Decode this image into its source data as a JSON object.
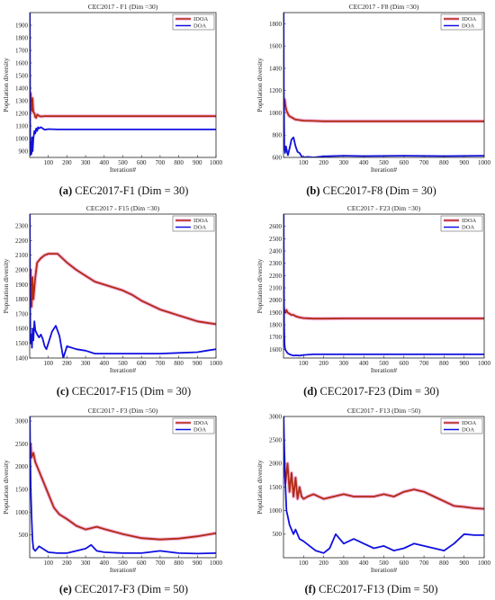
{
  "chart_data": [
    {
      "type": "line",
      "title": "CEC2017 - F1 (Dim =30)",
      "caption_letter": "(a)",
      "caption_text": " CEC2017-F1 (Dim = 30)",
      "xlabel": "Iteration#",
      "ylabel": "Population diversity",
      "xlim": [
        0,
        1000
      ],
      "ylim": [
        850,
        2000
      ],
      "xticks": [
        100,
        200,
        300,
        400,
        500,
        600,
        700,
        800,
        900,
        1000
      ],
      "yticks": [
        900,
        1000,
        1100,
        1200,
        1300,
        1400,
        1500,
        1600,
        1700,
        1800,
        1900
      ],
      "grid": false,
      "legend_position": "top-right",
      "series": [
        {
          "name": "IDOA",
          "color": "#b22a12",
          "halo": "#f2b6df",
          "x": [
            1,
            3,
            5,
            8,
            12,
            15,
            18,
            20,
            25,
            30,
            35,
            40,
            50,
            60,
            80,
            100,
            200,
            400,
            600,
            800,
            1000
          ],
          "y": [
            1250,
            1320,
            1360,
            1280,
            1220,
            1320,
            1240,
            1210,
            1200,
            1170,
            1165,
            1190,
            1180,
            1175,
            1178,
            1178,
            1178,
            1178,
            1178,
            1178,
            1178
          ]
        },
        {
          "name": "DOA",
          "color": "#1010e0",
          "halo": "",
          "x": [
            1,
            2,
            3,
            5,
            8,
            10,
            13,
            16,
            20,
            25,
            30,
            35,
            40,
            45,
            50,
            60,
            80,
            100,
            150,
            200,
            400,
            600,
            800,
            1000
          ],
          "y": [
            2000,
            1500,
            1000,
            870,
            950,
            880,
            1010,
            900,
            1000,
            1060,
            1040,
            1080,
            1060,
            1090,
            1080,
            1090,
            1070,
            1075,
            1072,
            1072,
            1072,
            1072,
            1072,
            1072
          ]
        }
      ]
    },
    {
      "type": "line",
      "title": "CEC2017 - F8 (Dim =30)",
      "caption_letter": "(b)",
      "caption_text": " CEC2017-F8 (Dim = 30)",
      "xlabel": "Iteration#",
      "ylabel": "Population diversity",
      "xlim": [
        0,
        1000
      ],
      "ylim": [
        600,
        1900
      ],
      "xticks": [
        100,
        200,
        300,
        400,
        500,
        600,
        700,
        800,
        900,
        1000
      ],
      "yticks": [
        600,
        800,
        1000,
        1200,
        1400,
        1600,
        1800
      ],
      "grid": false,
      "legend_position": "top-right",
      "series": [
        {
          "name": "IDOA",
          "color": "#b22a12",
          "halo": "#f2b6df",
          "x": [
            1,
            3,
            6,
            10,
            15,
            20,
            25,
            30,
            40,
            50,
            60,
            80,
            100,
            150,
            200,
            300,
            400,
            600,
            800,
            1000
          ],
          "y": [
            1050,
            1100,
            1120,
            1060,
            1020,
            1000,
            980,
            970,
            960,
            950,
            940,
            935,
            930,
            928,
            925,
            925,
            925,
            925,
            925,
            925
          ]
        },
        {
          "name": "DOA",
          "color": "#1010e0",
          "halo": "",
          "x": [
            1,
            2,
            4,
            8,
            12,
            18,
            22,
            30,
            40,
            50,
            60,
            70,
            80,
            90,
            100,
            120,
            150,
            200,
            300,
            400,
            600,
            800,
            1000
          ],
          "y": [
            1900,
            1200,
            700,
            640,
            700,
            650,
            620,
            680,
            760,
            780,
            700,
            650,
            640,
            610,
            600,
            605,
            600,
            610,
            615,
            612,
            615,
            612,
            615
          ]
        }
      ]
    },
    {
      "type": "line",
      "title": "CEC2017 - F15 (Dim =30)",
      "caption_letter": "(c)",
      "caption_text": " CEC2017-F15 (Dim = 30)",
      "xlabel": "Iteration#",
      "ylabel": "Population diversity",
      "xlim": [
        0,
        1000
      ],
      "ylim": [
        1400,
        2380
      ],
      "xticks": [
        100,
        200,
        300,
        400,
        500,
        600,
        700,
        800,
        900,
        1000
      ],
      "yticks": [
        1400,
        1500,
        1600,
        1700,
        1800,
        1900,
        2000,
        2100,
        2200,
        2300
      ],
      "grid": false,
      "legend_position": "top-right",
      "series": [
        {
          "name": "IDOA",
          "color": "#b22a12",
          "halo": "#f2b6df",
          "x": [
            1,
            5,
            10,
            15,
            20,
            30,
            40,
            60,
            80,
            100,
            150,
            200,
            250,
            300,
            350,
            400,
            450,
            500,
            550,
            600,
            650,
            700,
            750,
            800,
            850,
            900,
            950,
            1000
          ],
          "y": [
            1800,
            2000,
            1750,
            1950,
            1800,
            1950,
            2050,
            2080,
            2100,
            2110,
            2110,
            2050,
            2000,
            1960,
            1920,
            1900,
            1880,
            1860,
            1830,
            1790,
            1760,
            1730,
            1710,
            1690,
            1670,
            1650,
            1640,
            1630
          ]
        },
        {
          "name": "DOA",
          "color": "#1010e0",
          "halo": "",
          "x": [
            1,
            2,
            4,
            8,
            12,
            16,
            20,
            25,
            30,
            40,
            50,
            60,
            70,
            80,
            90,
            100,
            120,
            140,
            160,
            180,
            200,
            250,
            300,
            350,
            400,
            500,
            600,
            700,
            800,
            900,
            950,
            1000
          ],
          "y": [
            2380,
            1900,
            1500,
            1560,
            1470,
            1600,
            1520,
            1650,
            1590,
            1560,
            1540,
            1560,
            1530,
            1480,
            1460,
            1500,
            1580,
            1620,
            1550,
            1400,
            1480,
            1460,
            1450,
            1430,
            1430,
            1430,
            1430,
            1430,
            1435,
            1440,
            1450,
            1460
          ]
        }
      ]
    },
    {
      "type": "line",
      "title": "CEC2017 - F23 (Dim =30)",
      "caption_letter": "(d)",
      "caption_text": " CEC2017-F23 (Dim = 30)",
      "xlabel": "Iteration#",
      "ylabel": "Population diversity",
      "xlim": [
        0,
        1000
      ],
      "ylim": [
        1530,
        2700
      ],
      "xticks": [
        100,
        200,
        300,
        400,
        500,
        600,
        700,
        800,
        900,
        1000
      ],
      "yticks": [
        1600,
        1700,
        1800,
        1900,
        2000,
        2100,
        2200,
        2300,
        2400,
        2500,
        2600
      ],
      "grid": false,
      "legend_position": "top-right",
      "series": [
        {
          "name": "IDOA",
          "color": "#b22a12",
          "halo": "#f2b6df",
          "x": [
            1,
            3,
            6,
            10,
            15,
            20,
            30,
            40,
            50,
            60,
            80,
            100,
            150,
            200,
            300,
            400,
            600,
            800,
            1000
          ],
          "y": [
            1900,
            1930,
            1910,
            1900,
            1920,
            1900,
            1890,
            1880,
            1880,
            1870,
            1860,
            1855,
            1850,
            1850,
            1852,
            1852,
            1852,
            1852,
            1852
          ]
        },
        {
          "name": "DOA",
          "color": "#1010e0",
          "halo": "",
          "x": [
            1,
            2,
            3,
            5,
            8,
            12,
            16,
            20,
            30,
            40,
            50,
            60,
            80,
            100,
            150,
            200,
            300,
            400,
            600,
            800,
            1000
          ],
          "y": [
            2700,
            2300,
            1800,
            1650,
            1600,
            1590,
            1580,
            1570,
            1560,
            1555,
            1550,
            1552,
            1550,
            1555,
            1560,
            1560,
            1560,
            1560,
            1560,
            1560,
            1560
          ]
        }
      ]
    },
    {
      "type": "line",
      "title": "CEC2017 - F3 (Dim =50)",
      "caption_letter": "(e)",
      "caption_text": " CEC2017-F3 (Dim = 50)",
      "xlabel": "Iteration#",
      "ylabel": "Population diversity",
      "xlim": [
        0,
        1000
      ],
      "ylim": [
        0,
        3100
      ],
      "xticks": [
        100,
        200,
        300,
        400,
        500,
        600,
        700,
        800,
        900,
        1000
      ],
      "yticks": [
        500,
        1000,
        1500,
        2000,
        2500,
        3000
      ],
      "grid": false,
      "legend_position": "top-right",
      "series": [
        {
          "name": "IDOA",
          "color": "#b22a12",
          "halo": "#f2b6df",
          "x": [
            1,
            5,
            10,
            20,
            30,
            50,
            80,
            100,
            130,
            160,
            200,
            250,
            300,
            330,
            360,
            400,
            500,
            600,
            700,
            800,
            900,
            1000
          ],
          "y": [
            2400,
            2500,
            2200,
            2300,
            2100,
            1900,
            1600,
            1400,
            1100,
            950,
            850,
            700,
            620,
            650,
            680,
            630,
            520,
            430,
            400,
            420,
            470,
            540
          ]
        },
        {
          "name": "DOA",
          "color": "#1010e0",
          "halo": "",
          "x": [
            1,
            3,
            6,
            10,
            15,
            20,
            30,
            50,
            70,
            100,
            150,
            200,
            250,
            300,
            330,
            360,
            400,
            500,
            600,
            700,
            800,
            900,
            1000
          ],
          "y": [
            3100,
            2300,
            1500,
            900,
            400,
            200,
            150,
            250,
            200,
            120,
            100,
            100,
            150,
            200,
            280,
            150,
            120,
            100,
            100,
            150,
            100,
            90,
            100
          ]
        }
      ]
    },
    {
      "type": "line",
      "title": "CEC2017 - F13 (Dim =50)",
      "caption_letter": "(f)",
      "caption_text": " CEC2017-F13 (Dim = 50)",
      "xlabel": "Iteration#",
      "ylabel": "Population diversity",
      "xlim": [
        0,
        1000
      ],
      "ylim": [
        0,
        3000
      ],
      "xticks": [
        100,
        200,
        300,
        400,
        500,
        600,
        700,
        800,
        900,
        1000
      ],
      "yticks": [
        500,
        1000,
        1500,
        2000,
        2500,
        3000
      ],
      "grid": false,
      "legend_position": "top-right",
      "series": [
        {
          "name": "IDOA",
          "color": "#b22a12",
          "halo": "#f2b6df",
          "x": [
            1,
            5,
            10,
            20,
            30,
            40,
            50,
            60,
            70,
            80,
            90,
            100,
            120,
            150,
            200,
            250,
            300,
            350,
            400,
            450,
            500,
            550,
            600,
            650,
            700,
            750,
            800,
            850,
            900,
            950,
            1000
          ],
          "y": [
            2200,
            1800,
            1600,
            2000,
            1400,
            1800,
            1300,
            1700,
            1250,
            1500,
            1300,
            1250,
            1300,
            1350,
            1250,
            1300,
            1350,
            1300,
            1300,
            1300,
            1350,
            1300,
            1400,
            1450,
            1400,
            1300,
            1200,
            1100,
            1080,
            1050,
            1040
          ]
        },
        {
          "name": "DOA",
          "color": "#1010e0",
          "halo": "",
          "x": [
            1,
            3,
            6,
            10,
            15,
            20,
            30,
            40,
            50,
            60,
            80,
            100,
            130,
            160,
            200,
            230,
            260,
            300,
            350,
            400,
            450,
            500,
            550,
            600,
            650,
            700,
            750,
            800,
            850,
            900,
            950,
            1000
          ],
          "y": [
            3000,
            2500,
            2000,
            1500,
            1000,
            900,
            700,
            600,
            500,
            600,
            400,
            350,
            250,
            150,
            100,
            200,
            500,
            300,
            400,
            300,
            200,
            250,
            150,
            200,
            300,
            250,
            200,
            150,
            300,
            500,
            480,
            480
          ]
        }
      ]
    }
  ]
}
